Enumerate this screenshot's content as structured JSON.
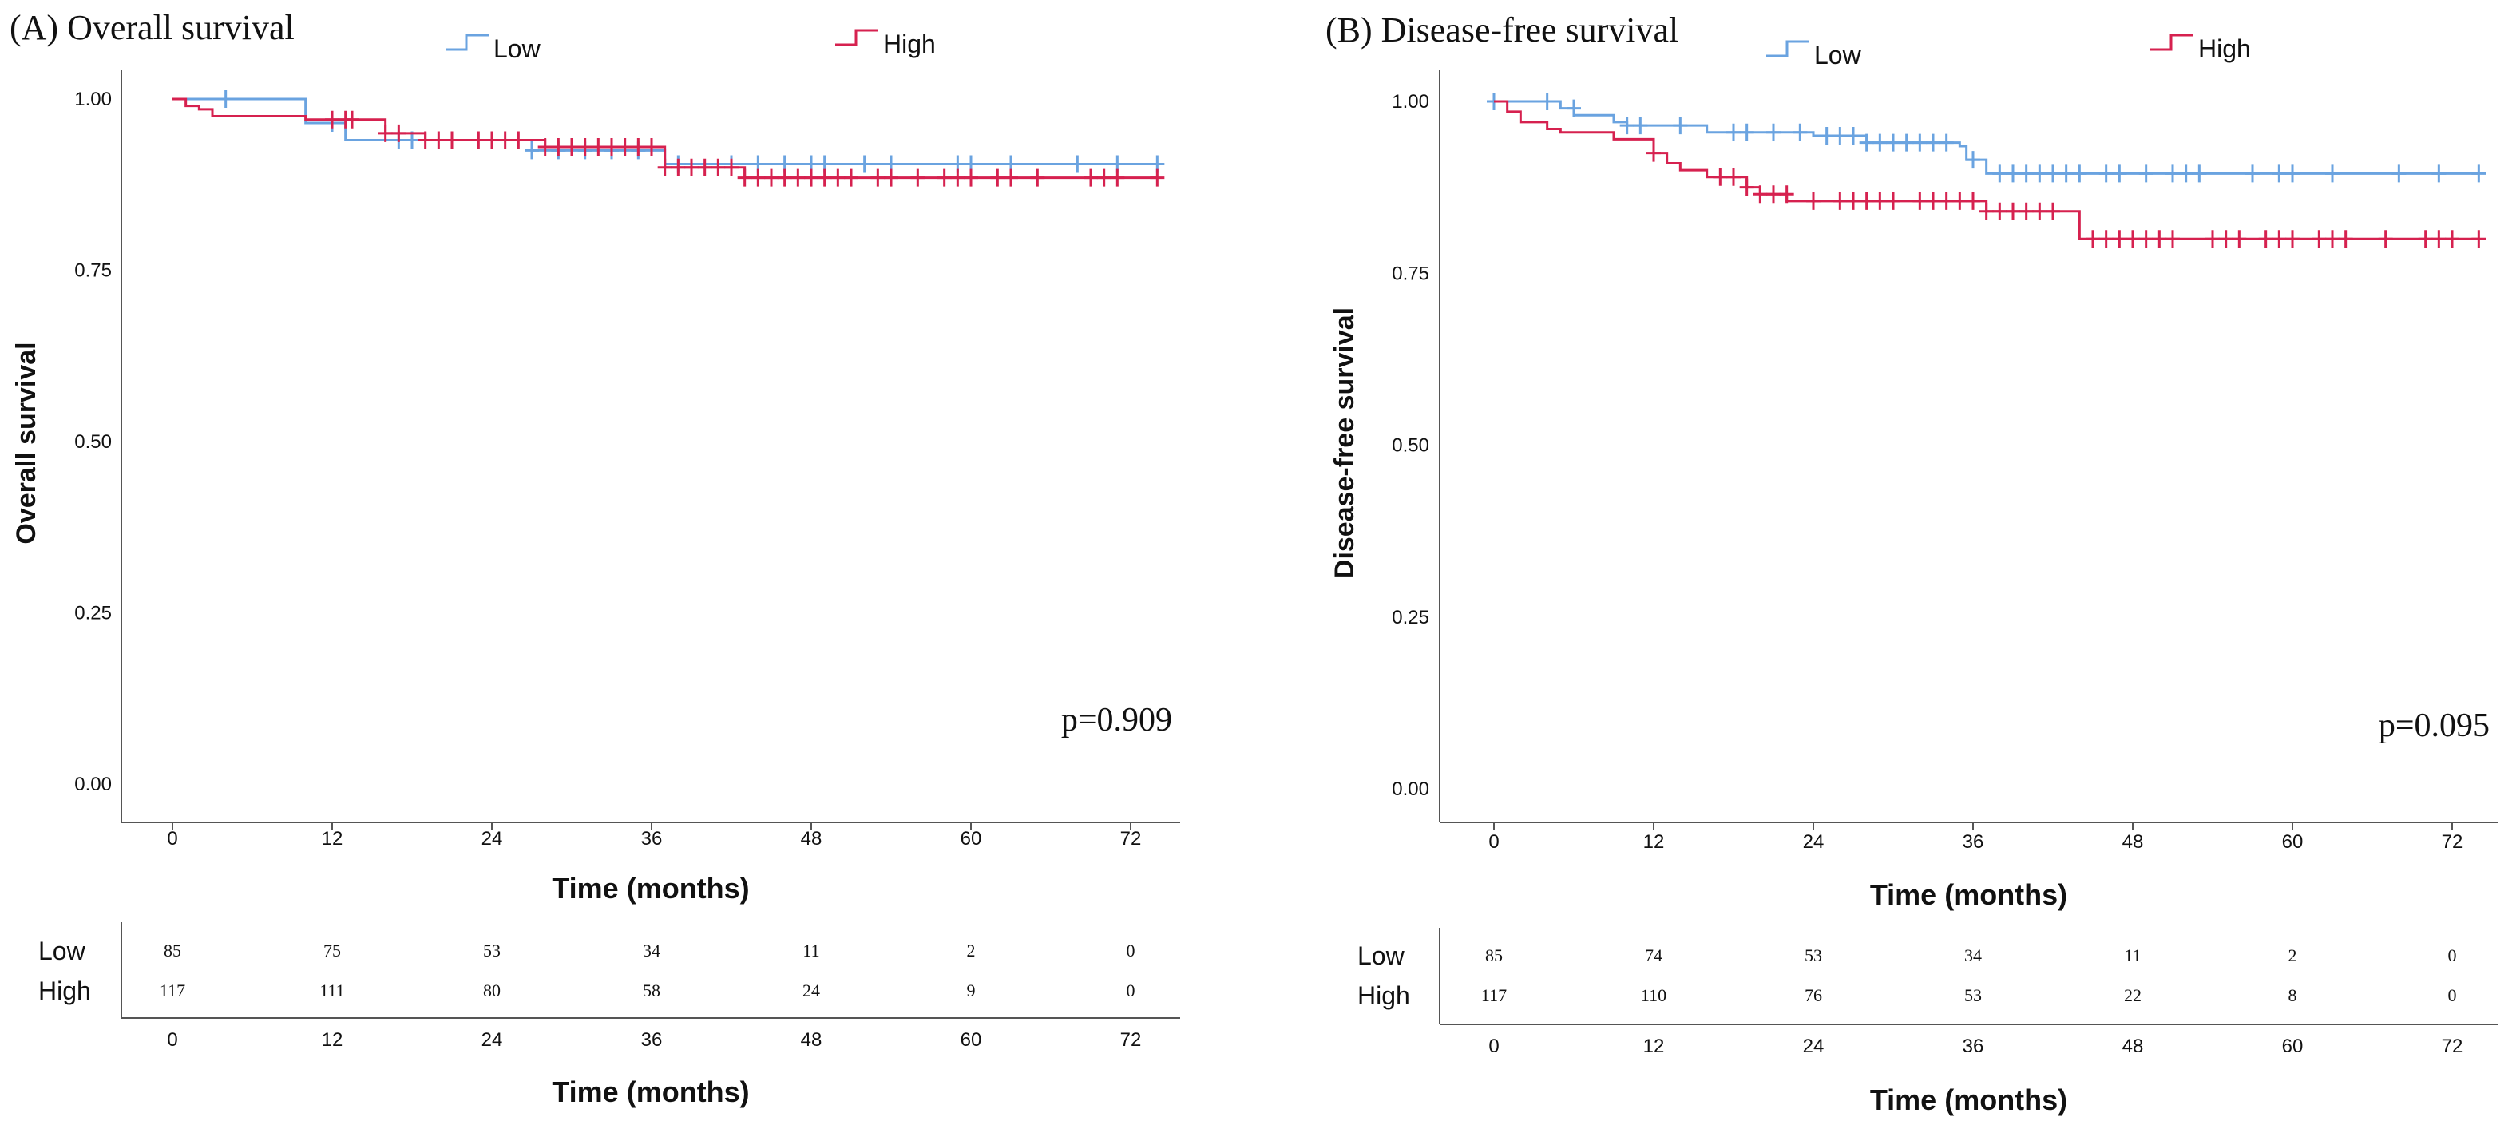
{
  "colors": {
    "low": "#6aa3e0",
    "high": "#d6214f",
    "axis": "#555555",
    "text": "#111111"
  },
  "chart_data": [
    {
      "type": "line",
      "panel_label": "(A) Overall survival",
      "ylabel": "Overall survival",
      "xlabel": "Time (months)",
      "risk_xlabel": "Time (months)",
      "ylim": [
        0,
        1
      ],
      "xlim": [
        0,
        72
      ],
      "x_ticks": [
        "0",
        "12",
        "24",
        "36",
        "48",
        "60",
        "72"
      ],
      "y_ticks": [
        "0.00",
        "0.25",
        "0.50",
        "0.75",
        "1.00"
      ],
      "p_value": "p=0.909",
      "legend": {
        "position": "top",
        "entries": [
          "Low",
          "High"
        ]
      },
      "series": [
        {
          "name": "Low",
          "color_key": "low",
          "steps": [
            [
              0,
              1.0
            ],
            [
              10,
              0.965
            ],
            [
              13,
              0.94
            ],
            [
              27,
              0.925
            ],
            [
              37,
              0.905
            ]
          ],
          "end_x": 74,
          "censor": [
            [
              4,
              1.0
            ],
            [
              12,
              0.965
            ],
            [
              17,
              0.94
            ],
            [
              18,
              0.94
            ],
            [
              27,
              0.925
            ],
            [
              29,
              0.925
            ],
            [
              31,
              0.925
            ],
            [
              33,
              0.925
            ],
            [
              35,
              0.925
            ],
            [
              38,
              0.905
            ],
            [
              42,
              0.905
            ],
            [
              44,
              0.905
            ],
            [
              46,
              0.905
            ],
            [
              48,
              0.905
            ],
            [
              49,
              0.905
            ],
            [
              52,
              0.905
            ],
            [
              54,
              0.905
            ],
            [
              59,
              0.905
            ],
            [
              60,
              0.905
            ],
            [
              63,
              0.905
            ],
            [
              68,
              0.905
            ],
            [
              71,
              0.905
            ],
            [
              74,
              0.905
            ]
          ]
        },
        {
          "name": "High",
          "color_key": "high",
          "steps": [
            [
              0,
              1.0
            ],
            [
              1,
              0.99
            ],
            [
              2,
              0.985
            ],
            [
              3,
              0.975
            ],
            [
              10,
              0.97
            ],
            [
              16,
              0.95
            ],
            [
              19,
              0.94
            ],
            [
              28,
              0.93
            ],
            [
              37,
              0.9
            ],
            [
              43,
              0.885
            ]
          ],
          "end_x": 74,
          "censor": [
            [
              12,
              0.97
            ],
            [
              13,
              0.97
            ],
            [
              13.5,
              0.97
            ],
            [
              16,
              0.95
            ],
            [
              17,
              0.95
            ],
            [
              19,
              0.94
            ],
            [
              20,
              0.94
            ],
            [
              21,
              0.94
            ],
            [
              23,
              0.94
            ],
            [
              24,
              0.94
            ],
            [
              25,
              0.94
            ],
            [
              26,
              0.94
            ],
            [
              28,
              0.93
            ],
            [
              29,
              0.93
            ],
            [
              30,
              0.93
            ],
            [
              31,
              0.93
            ],
            [
              32,
              0.93
            ],
            [
              33,
              0.93
            ],
            [
              34,
              0.93
            ],
            [
              35,
              0.93
            ],
            [
              36,
              0.93
            ],
            [
              37,
              0.9
            ],
            [
              38,
              0.9
            ],
            [
              39,
              0.9
            ],
            [
              40,
              0.9
            ],
            [
              41,
              0.9
            ],
            [
              42,
              0.9
            ],
            [
              43,
              0.885
            ],
            [
              44,
              0.885
            ],
            [
              45,
              0.885
            ],
            [
              46,
              0.885
            ],
            [
              47,
              0.885
            ],
            [
              48,
              0.885
            ],
            [
              49,
              0.885
            ],
            [
              50,
              0.885
            ],
            [
              51,
              0.885
            ],
            [
              53,
              0.885
            ],
            [
              54,
              0.885
            ],
            [
              56,
              0.885
            ],
            [
              58,
              0.885
            ],
            [
              59,
              0.885
            ],
            [
              60,
              0.885
            ],
            [
              62,
              0.885
            ],
            [
              63,
              0.885
            ],
            [
              65,
              0.885
            ],
            [
              69,
              0.885
            ],
            [
              70,
              0.885
            ],
            [
              71,
              0.885
            ],
            [
              74,
              0.885
            ]
          ]
        }
      ],
      "risk_table": {
        "rows": [
          {
            "label": "Low",
            "values": [
              "85",
              "75",
              "53",
              "34",
              "11",
              "2",
              "0"
            ]
          },
          {
            "label": "High",
            "values": [
              "117",
              "111",
              "80",
              "58",
              "24",
              "9",
              "0"
            ]
          }
        ]
      }
    },
    {
      "type": "line",
      "panel_label": "(B) Disease-free survival",
      "ylabel": "Disease-free survival",
      "xlabel": "Time (months)",
      "risk_xlabel": "Time (months)",
      "ylim": [
        0,
        1
      ],
      "xlim": [
        0,
        72
      ],
      "x_ticks": [
        "0",
        "12",
        "24",
        "36",
        "48",
        "60",
        "72"
      ],
      "y_ticks": [
        "0.00",
        "0.25",
        "0.50",
        "0.75",
        "1.00"
      ],
      "p_value": "p=0.095",
      "legend": {
        "position": "top",
        "entries": [
          "Low",
          "High"
        ]
      },
      "series": [
        {
          "name": "Low",
          "color_key": "low",
          "steps": [
            [
              0,
              1.0
            ],
            [
              5,
              0.99
            ],
            [
              6,
              0.98
            ],
            [
              9,
              0.97
            ],
            [
              10,
              0.965
            ],
            [
              16,
              0.955
            ],
            [
              24,
              0.95
            ],
            [
              28,
              0.94
            ],
            [
              35,
              0.935
            ],
            [
              35.5,
              0.915
            ],
            [
              37,
              0.895
            ]
          ],
          "end_x": 74,
          "censor": [
            [
              0,
              1.0
            ],
            [
              4,
              1.0
            ],
            [
              6,
              0.99
            ],
            [
              10,
              0.965
            ],
            [
              11,
              0.965
            ],
            [
              14,
              0.965
            ],
            [
              18,
              0.955
            ],
            [
              19,
              0.955
            ],
            [
              21,
              0.955
            ],
            [
              23,
              0.955
            ],
            [
              25,
              0.95
            ],
            [
              26,
              0.95
            ],
            [
              27,
              0.95
            ],
            [
              28,
              0.94
            ],
            [
              29,
              0.94
            ],
            [
              30,
              0.94
            ],
            [
              31,
              0.94
            ],
            [
              32,
              0.94
            ],
            [
              33,
              0.94
            ],
            [
              34,
              0.94
            ],
            [
              36,
              0.915
            ],
            [
              38,
              0.895
            ],
            [
              39,
              0.895
            ],
            [
              40,
              0.895
            ],
            [
              41,
              0.895
            ],
            [
              42,
              0.895
            ],
            [
              43,
              0.895
            ],
            [
              44,
              0.895
            ],
            [
              46,
              0.895
            ],
            [
              47,
              0.895
            ],
            [
              49,
              0.895
            ],
            [
              51,
              0.895
            ],
            [
              52,
              0.895
            ],
            [
              53,
              0.895
            ],
            [
              57,
              0.895
            ],
            [
              59,
              0.895
            ],
            [
              60,
              0.895
            ],
            [
              63,
              0.895
            ],
            [
              68,
              0.895
            ],
            [
              71,
              0.895
            ],
            [
              74,
              0.895
            ]
          ]
        },
        {
          "name": "High",
          "color_key": "high",
          "steps": [
            [
              0,
              1.0
            ],
            [
              1,
              0.985
            ],
            [
              2,
              0.97
            ],
            [
              4,
              0.96
            ],
            [
              5,
              0.955
            ],
            [
              9,
              0.945
            ],
            [
              12,
              0.925
            ],
            [
              13,
              0.91
            ],
            [
              14,
              0.9
            ],
            [
              16,
              0.89
            ],
            [
              19,
              0.875
            ],
            [
              20,
              0.865
            ],
            [
              22,
              0.855
            ],
            [
              37,
              0.84
            ],
            [
              44,
              0.8
            ]
          ],
          "end_x": 74,
          "censor": [
            [
              12,
              0.925
            ],
            [
              17,
              0.89
            ],
            [
              18,
              0.89
            ],
            [
              19,
              0.875
            ],
            [
              20,
              0.865
            ],
            [
              21,
              0.865
            ],
            [
              22,
              0.865
            ],
            [
              24,
              0.855
            ],
            [
              26,
              0.855
            ],
            [
              27,
              0.855
            ],
            [
              28,
              0.855
            ],
            [
              29,
              0.855
            ],
            [
              30,
              0.855
            ],
            [
              32,
              0.855
            ],
            [
              33,
              0.855
            ],
            [
              34,
              0.855
            ],
            [
              35,
              0.855
            ],
            [
              36,
              0.855
            ],
            [
              37,
              0.84
            ],
            [
              38,
              0.84
            ],
            [
              39,
              0.84
            ],
            [
              40,
              0.84
            ],
            [
              41,
              0.84
            ],
            [
              42,
              0.84
            ],
            [
              45,
              0.8
            ],
            [
              46,
              0.8
            ],
            [
              47,
              0.8
            ],
            [
              48,
              0.8
            ],
            [
              49,
              0.8
            ],
            [
              50,
              0.8
            ],
            [
              51,
              0.8
            ],
            [
              54,
              0.8
            ],
            [
              55,
              0.8
            ],
            [
              56,
              0.8
            ],
            [
              58,
              0.8
            ],
            [
              59,
              0.8
            ],
            [
              60,
              0.8
            ],
            [
              62,
              0.8
            ],
            [
              63,
              0.8
            ],
            [
              64,
              0.8
            ],
            [
              67,
              0.8
            ],
            [
              70,
              0.8
            ],
            [
              71,
              0.8
            ],
            [
              72,
              0.8
            ],
            [
              74,
              0.8
            ]
          ]
        }
      ],
      "risk_table": {
        "rows": [
          {
            "label": "Low",
            "values": [
              "85",
              "74",
              "53",
              "34",
              "11",
              "2",
              "0"
            ]
          },
          {
            "label": "High",
            "values": [
              "117",
              "110",
              "76",
              "53",
              "22",
              "8",
              "0"
            ]
          }
        ]
      }
    }
  ]
}
